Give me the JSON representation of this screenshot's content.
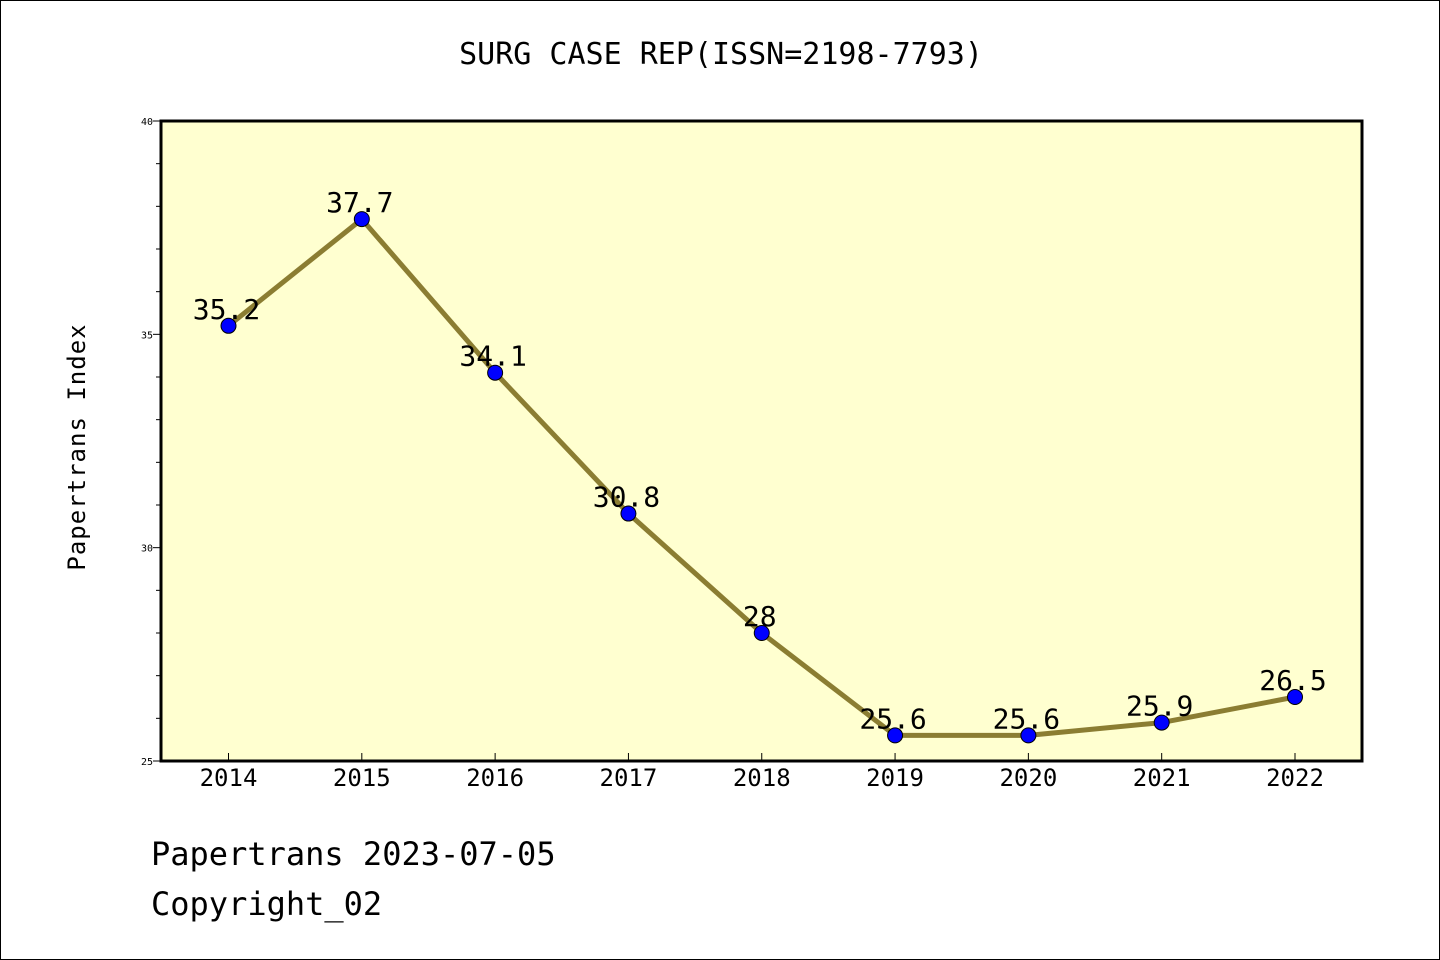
{
  "chart_data": {
    "type": "line",
    "title": "SURG CASE REP(ISSN=2198-7793)",
    "ylabel": "Papertrans Index",
    "xlabel": "",
    "categories": [
      "2014",
      "2015",
      "2016",
      "2017",
      "2018",
      "2019",
      "2020",
      "2021",
      "2022"
    ],
    "values": [
      35.2,
      37.7,
      34.1,
      30.8,
      28,
      25.6,
      25.6,
      25.9,
      26.5
    ],
    "data_labels": [
      "35.2",
      "37.7",
      "34.1",
      "30.8",
      "28",
      "25.6",
      "25.6",
      "25.9",
      "26.5"
    ],
    "ylim": [
      25,
      40
    ],
    "yticks": [
      25,
      30,
      35,
      40
    ],
    "grid": false,
    "colors": {
      "line": "#8b7d32",
      "marker": "#0000ff",
      "plot_background": "#ffffd0"
    }
  },
  "footer": {
    "date": "Papertrans 2023-07-05",
    "copyright": "Copyright_02"
  }
}
